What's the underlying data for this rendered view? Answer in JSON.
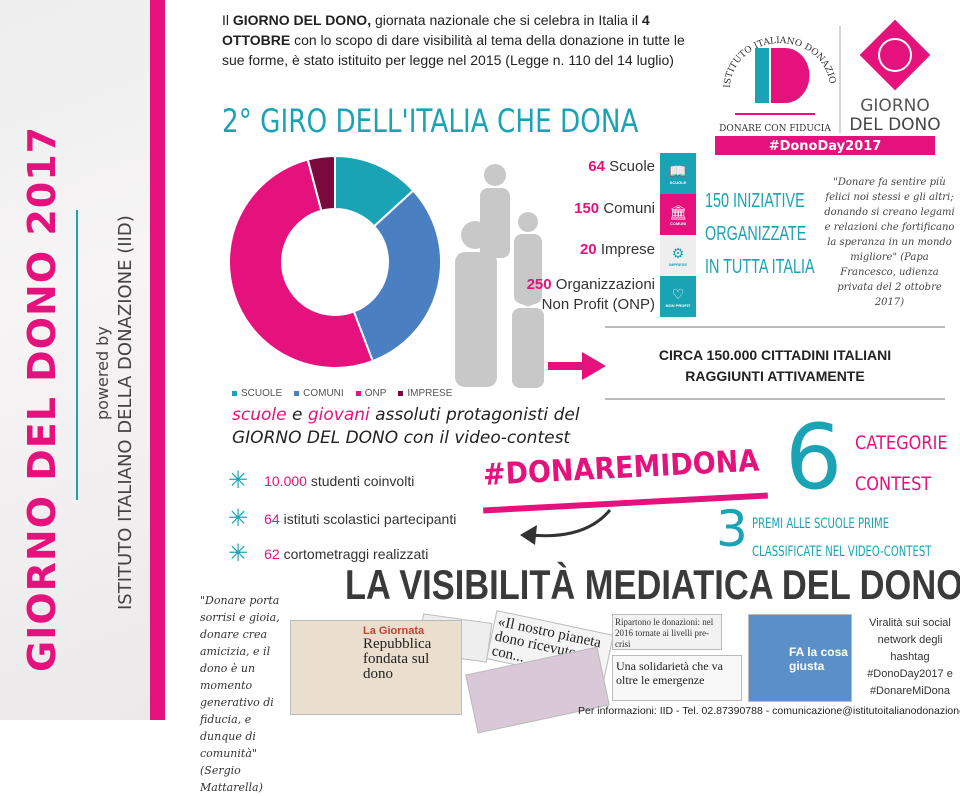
{
  "side": {
    "title": "GIORNO DEL DONO 2017",
    "powered_by": "powered by",
    "institute": "ISTITUTO ITALIANO DELLA DONAZIONE (IID)"
  },
  "intro": {
    "p1": "Il ",
    "b1": "GIORNO DEL DONO,",
    "p2": " giornata nazionale che si celebra in Italia il ",
    "b2": "4 OTTOBRE",
    "p3": " con lo scopo di dare visibilità al tema della donazione in tutte le sue forme, è stato istituito per legge nel 2015 (Legge n. 110 del 14 luglio)"
  },
  "logo": {
    "ring_text": "ISTITUTO ITALIANO DONAZIONE",
    "mark": "ID",
    "tagline": "DONARE CON FIDUCIA",
    "giorno": "GIORNO",
    "del_dono": "DEL DONO",
    "hashtag": "#DonoDay2017"
  },
  "giro_title": "2° GIRO DELL'ITALIA CHE DONA",
  "chart_data": {
    "type": "pie",
    "donut": true,
    "categories": [
      "SCUOLE",
      "COMUNI",
      "ONP",
      "IMPRESE"
    ],
    "values": [
      64,
      150,
      250,
      20
    ],
    "colors": [
      "#1aa3b5",
      "#4a7fc1",
      "#e5127d",
      "#7a0a3e"
    ],
    "legend": "bottom"
  },
  "stats": [
    {
      "num": "64",
      "label": "Scuole",
      "icon": "book-icon",
      "badge": "SCUOLE",
      "color": "#1aa3b5"
    },
    {
      "num": "150",
      "label": "Comuni",
      "icon": "building-icon",
      "badge": "COMUNI",
      "color": "#e5127d"
    },
    {
      "num": "20",
      "label": "Imprese",
      "icon": "gears-icon",
      "badge": "IMPRESE",
      "color": "#eeeeee"
    },
    {
      "num": "250",
      "label": "Organizzazioni",
      "label2": "Non Profit (ONP)",
      "icon": "heart-icon",
      "badge": "NON PROFIT",
      "color": "#1aa3b5"
    }
  ],
  "iniziative": [
    "150 INIZIATIVE",
    "ORGANIZZATE",
    "IN TUTTA ITALIA"
  ],
  "quote_pope": "\"Donare fa sentire più felici noi stessi e gli altri; donando si creano legami e relazioni che fortificano la speranza in un mondo migliore\" (Papa Francesco, udienza privata del 2 ottobre 2017)",
  "circa": [
    "CIRCA 150.000 CITTADINI ITALIANI",
    "RAGGIUNTI ATTIVAMENTE"
  ],
  "protagonisti": {
    "w1": "scuole",
    "w2": " e ",
    "w3": "giovani",
    "w4": " assoluti protagonisti del",
    "line2": "GIORNO DEL DONO",
    "line2b": " con il video-contest"
  },
  "bullets": [
    {
      "num": "10.000",
      "text": " studenti coinvolti"
    },
    {
      "num": "64",
      "text": " istituti scolastici partecipanti"
    },
    {
      "num": "62",
      "text": " cortometraggi realizzati"
    }
  ],
  "hashtag": "#DONAREMIDONA",
  "contest": {
    "num": "6",
    "lines": [
      "CATEGORIE",
      "CONTEST"
    ]
  },
  "premi": {
    "num": "3",
    "lines": [
      "PREMI ALLE SCUOLE PRIME",
      "CLASSIFICATE NEL VIDEO-CONTEST"
    ]
  },
  "visibility_title": "LA VISIBILITÀ MEDIATICA DEL DONO",
  "quote_mattarella": "\"Donare porta sorrisi e gioia, donare crea amicizia, e il dono è un momento generativo di fiducia, e dunque di comunità\" (Sergio Mattarella)",
  "clips": {
    "c1_kicker": "La Giornata",
    "c1_head": "Repubblica fondata sul dono",
    "c2": "«Il nostro pianeta dono ricevuto da con...",
    "c3": "Ripartono le donazioni: nel 2016 tornate ai livelli pre-crisi",
    "c4": "Una solidarietà che va oltre le emergenze",
    "c5": "FA la cosa giusta"
  },
  "viral": "Viralità sui social network degli hashtag #DonoDay2017 e #DonareMiDona",
  "footer": "Per informazioni: IID - Tel. 02.87390788 - comunicazione@istitutoitalianodonazione.it"
}
